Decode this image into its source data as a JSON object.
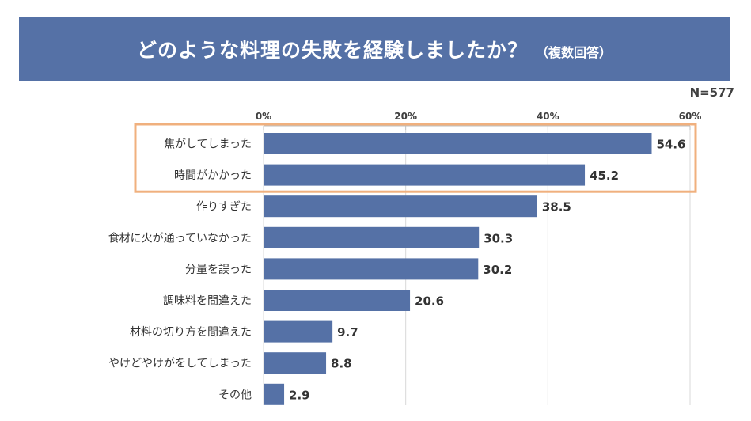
{
  "title": {
    "main": "どのような料理の失敗を経験しましたか？",
    "sub": "（複数回答）"
  },
  "sample_size": "N=577",
  "colors": {
    "banner": "#5571a6",
    "bar": "#5571a6",
    "highlight": "#f0b07e",
    "grid": "#d9d9d9"
  },
  "chart_data": {
    "type": "bar",
    "orientation": "horizontal",
    "title": "どのような料理の失敗を経験しましたか？（複数回答）",
    "unit": "%",
    "xlim": [
      0,
      60
    ],
    "ticks": [
      0,
      20,
      40,
      60
    ],
    "tick_labels": [
      "0%",
      "20%",
      "40%",
      "60%"
    ],
    "categories": [
      "焦がしてしまった",
      "時間がかかった",
      "作りすぎた",
      "食材に火が通っていなかった",
      "分量を誤った",
      "調味料を間違えた",
      "材料の切り方を間違えた",
      "やけどやけがをしてしまった",
      "その他"
    ],
    "values": [
      54.6,
      45.2,
      38.5,
      30.3,
      30.2,
      20.6,
      9.7,
      8.8,
      2.9
    ],
    "value_labels": [
      "54.6",
      "45.2",
      "38.5",
      "30.3",
      "30.2",
      "20.6",
      "9.7",
      "8.8",
      "2.9"
    ],
    "highlighted_categories": [
      "焦がしてしまった",
      "時間がかかった"
    ]
  }
}
